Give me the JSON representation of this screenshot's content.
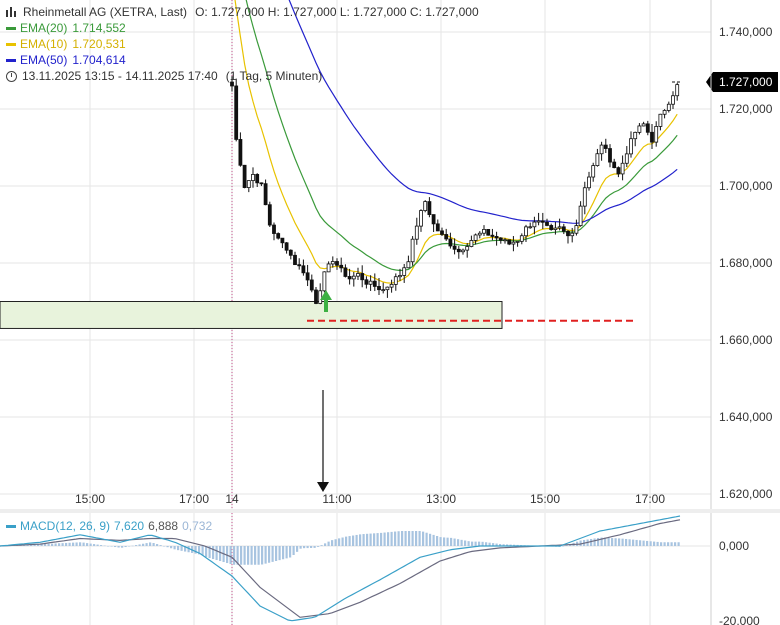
{
  "instrument": {
    "name": "Rheinmetall AG (XETRA, Last)",
    "ohlc": "O: 1.727,000  H: 1.727,000  L: 1.727,000  C: 1.727,000",
    "period": "13.11.2025 13:15 - 14.11.2025 17:40",
    "interval": "(1 Tag, 5 Minuten)"
  },
  "indicators": [
    {
      "name": "EMA(20)",
      "value": "1.714,552",
      "color": "#3a9a3a"
    },
    {
      "name": "EMA(10)",
      "value": "1.720,531",
      "color": "#e8c200"
    },
    {
      "name": "EMA(50)",
      "value": "1.704,614",
      "color": "#2222cc"
    }
  ],
  "macd": {
    "label": "MACD(12, 26, 9)",
    "macd_value": "7,620",
    "signal_value": "6,888",
    "hist_value": "0,732",
    "macd_color": "#3aa0c8",
    "signal_color": "#6a6a80",
    "hist_color": "#a8c4e0",
    "y_ticks": [
      "0,000",
      "-20,000"
    ]
  },
  "colors": {
    "candle": "#111111",
    "support_zone_fill": "#e8f3dc",
    "support_line": "#e02020",
    "arrow_up": "#3cb043",
    "grid": "#e6e6e6",
    "last_price_bg": "#000000"
  },
  "chart_data": {
    "type": "candlestick",
    "y_ticks": [
      "1.740,000",
      "1.720,000",
      "1.700,000",
      "1.680,000",
      "1.660,000",
      "1.640,000",
      "1.620,000"
    ],
    "x_ticks": [
      "15:00",
      "17:00",
      "14",
      "11:00",
      "13:00",
      "15:00",
      "17:00"
    ],
    "last_price": "1.727,000",
    "ylim": [
      1617,
      1748
    ],
    "support_zone": [
      1663,
      1670
    ],
    "support_level": 1665,
    "grid": true
  }
}
